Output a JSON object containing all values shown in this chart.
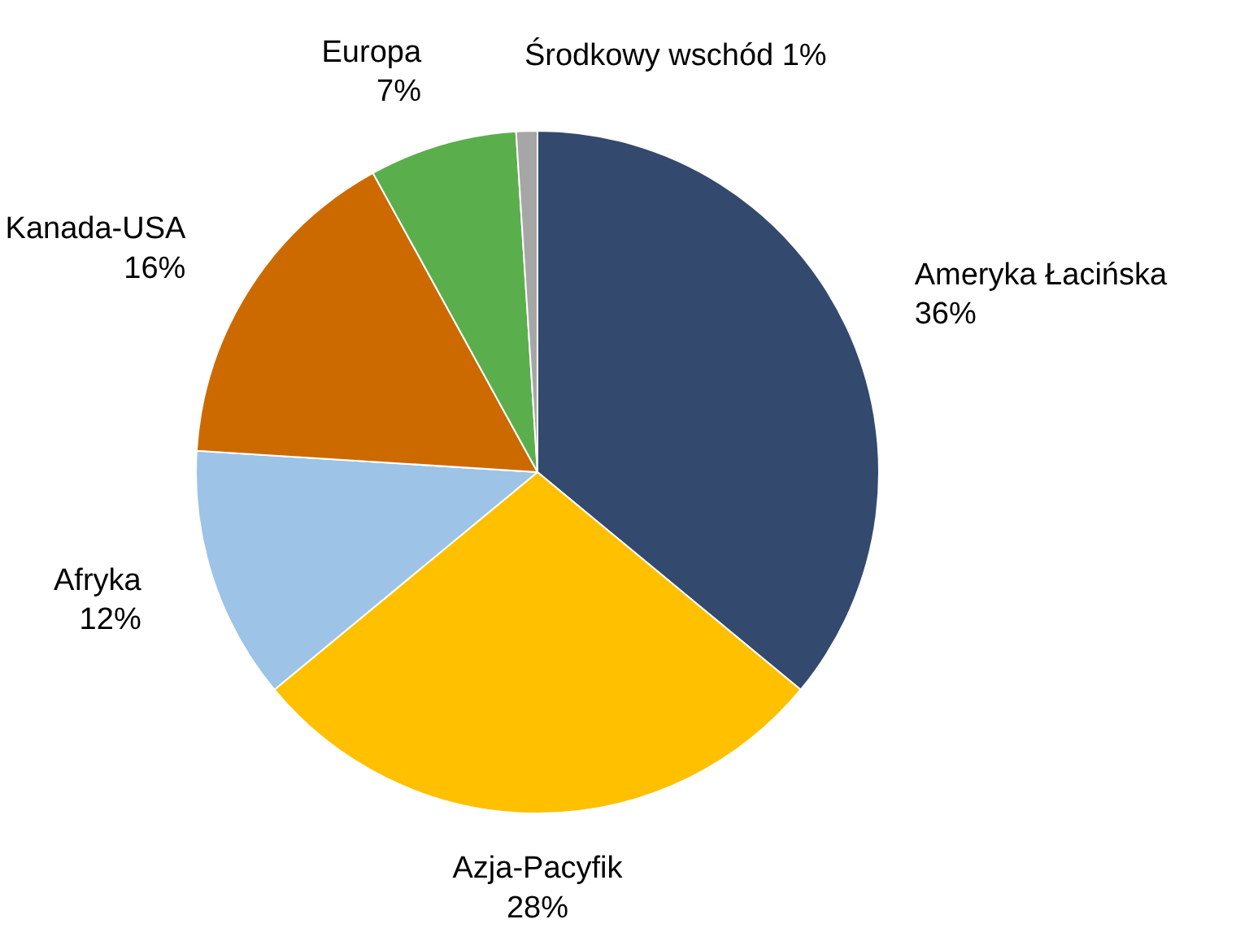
{
  "chart_data": {
    "type": "pie",
    "categories": [
      "Ameryka Łacińska",
      "Azja-Pacyfik",
      "Afryka",
      "Kanada-USA",
      "Europa",
      "Środkowy wschód"
    ],
    "values": [
      36,
      28,
      12,
      16,
      7,
      1
    ],
    "value_labels": [
      "36%",
      "28%",
      "12%",
      "16%",
      "7%",
      "1%"
    ],
    "colors": [
      "#334a6e",
      "#ffc000",
      "#9dc3e6",
      "#cc6a00",
      "#5aae4c",
      "#a6a6a6"
    ],
    "legend": false
  }
}
